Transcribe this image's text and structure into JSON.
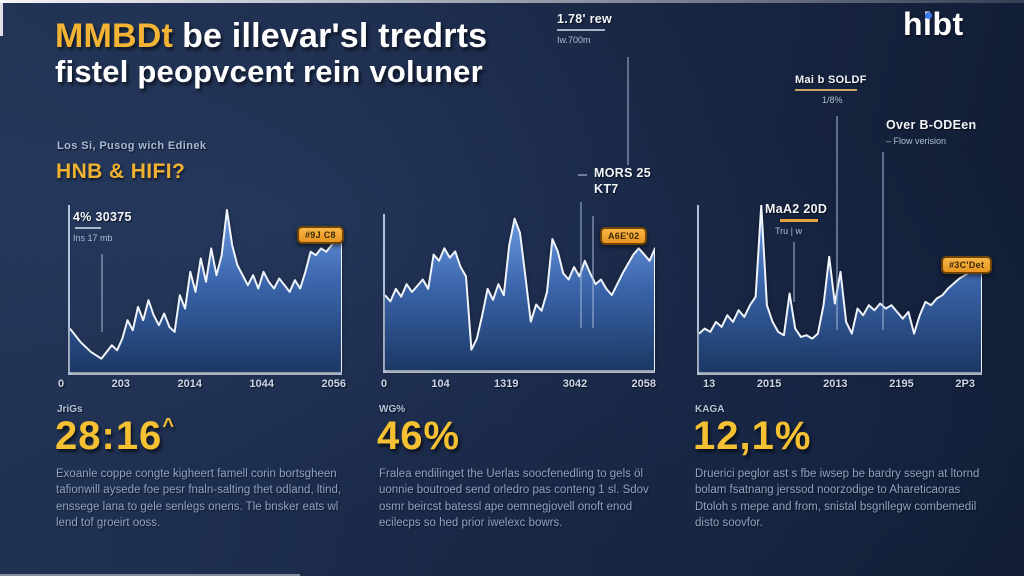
{
  "header": {
    "title_highlight": "MMBDt",
    "title_rest": "be illevar'sl tredrts",
    "title_line2": "fistel peopvcent rein voluner",
    "logo": "hibt"
  },
  "colors": {
    "accent_yellow": "#f3b435",
    "badge_orange": "#ef9f2e",
    "chart_line": "#eff4fb",
    "chart_fill_top": "#6f9fe8",
    "chart_fill_bottom": "#1d3a68",
    "background": "#1b2a49"
  },
  "panels": [
    {
      "kicker": "Los Si, Pusog wich Edinek",
      "subtitle": "HNB & HIFI?",
      "callout_title": "4% 30375",
      "callout_sub": "Ins 17 mb",
      "badge": "#9J C8",
      "stat_label": "JriGs",
      "stat_value": "28:16",
      "stat_suffix": "^",
      "body": "Exoanle coppe congte kigheert famell corin bortsgheen tafionwill aysede foe pesr fnaln-salting thet odland, ltind, enssege lana to gele senlegs onens. Tle bnsker eats wl lend tof groeirt ooss."
    },
    {
      "callout_top_title": "1.78' rew",
      "callout_top_sub": "Iw.700m",
      "callout_mid_line1": "MORS 25",
      "callout_mid_line2": "KT7",
      "badge": "A6E'02",
      "stat_label": "WG%",
      "stat_value": "46%",
      "body": "Fralea endilinget the Uerlas soocfenedling to gels öl uonnie boutroed send orledro pas conteng 1 sl. Sdov osmr beircst batessl ape oemnegjovell onoft enod ecilecps so hed prior iwelexc bowrs."
    },
    {
      "callout_a_title": "Mai b SOLDF",
      "callout_a_sub": "1/8%",
      "callout_b_title": "Over B-ODEen",
      "callout_b_sub": "– Flow verision",
      "callout_c_title": "MaA2 20D",
      "callout_c_sub": "Tru | w",
      "badge": "#3C'Det",
      "stat_label": "KAGA",
      "stat_value": "12,1%",
      "body": "Druerici peglor ast s fbe iwsep be bardry ssegn at ltornd bolam fsatnang jerssod noorzodige to Ahareticaoras Dtoloh s mepe and from, snistal bsgnllegw combemedil disto soovfor."
    }
  ],
  "chart_data": [
    {
      "type": "area",
      "title": "HNB & HIFI?",
      "x_labels": [
        "0",
        "203",
        "2014",
        "1044",
        "2056"
      ],
      "ylim": [
        0,
        100
      ],
      "grid": false,
      "legend": false,
      "values": [
        26,
        22,
        18,
        15,
        12,
        10,
        8,
        12,
        16,
        13,
        20,
        31,
        25,
        39,
        31,
        43,
        34,
        28,
        35,
        27,
        24,
        46,
        38,
        60,
        48,
        68,
        54,
        74,
        58,
        70,
        97,
        76,
        64,
        58,
        52,
        58,
        50,
        60,
        54,
        50,
        56,
        52,
        48,
        55,
        50,
        60,
        72,
        70,
        74,
        72,
        76,
        82,
        86
      ]
    },
    {
      "type": "area",
      "title": "1.78' rew",
      "x_labels": [
        "0",
        "104",
        "1319",
        "3042",
        "2058"
      ],
      "ylim": [
        0,
        100
      ],
      "grid": false,
      "legend": false,
      "values": [
        48,
        44,
        52,
        47,
        55,
        50,
        54,
        58,
        52,
        74,
        70,
        78,
        72,
        76,
        66,
        60,
        13,
        20,
        35,
        52,
        45,
        55,
        48,
        80,
        97,
        88,
        60,
        31,
        42,
        38,
        50,
        84,
        76,
        62,
        58,
        66,
        60,
        70,
        62,
        55,
        58,
        52,
        48,
        55,
        62,
        68,
        74,
        78,
        74,
        70,
        78
      ]
    },
    {
      "type": "area",
      "title": "MaA2 20D",
      "x_labels": [
        "13",
        "2015",
        "2013",
        "2195",
        "2P3"
      ],
      "ylim": [
        0,
        100
      ],
      "grid": false,
      "legend": false,
      "values": [
        23,
        26,
        24,
        30,
        27,
        34,
        30,
        37,
        33,
        40,
        45,
        100,
        40,
        30,
        24,
        22,
        47,
        26,
        21,
        22,
        20,
        23,
        40,
        69,
        41,
        60,
        30,
        23,
        38,
        34,
        40,
        37,
        41,
        38,
        40,
        36,
        32,
        36,
        23,
        34,
        42,
        40,
        44,
        46,
        50,
        53,
        56,
        58,
        60,
        62,
        63
      ]
    }
  ]
}
